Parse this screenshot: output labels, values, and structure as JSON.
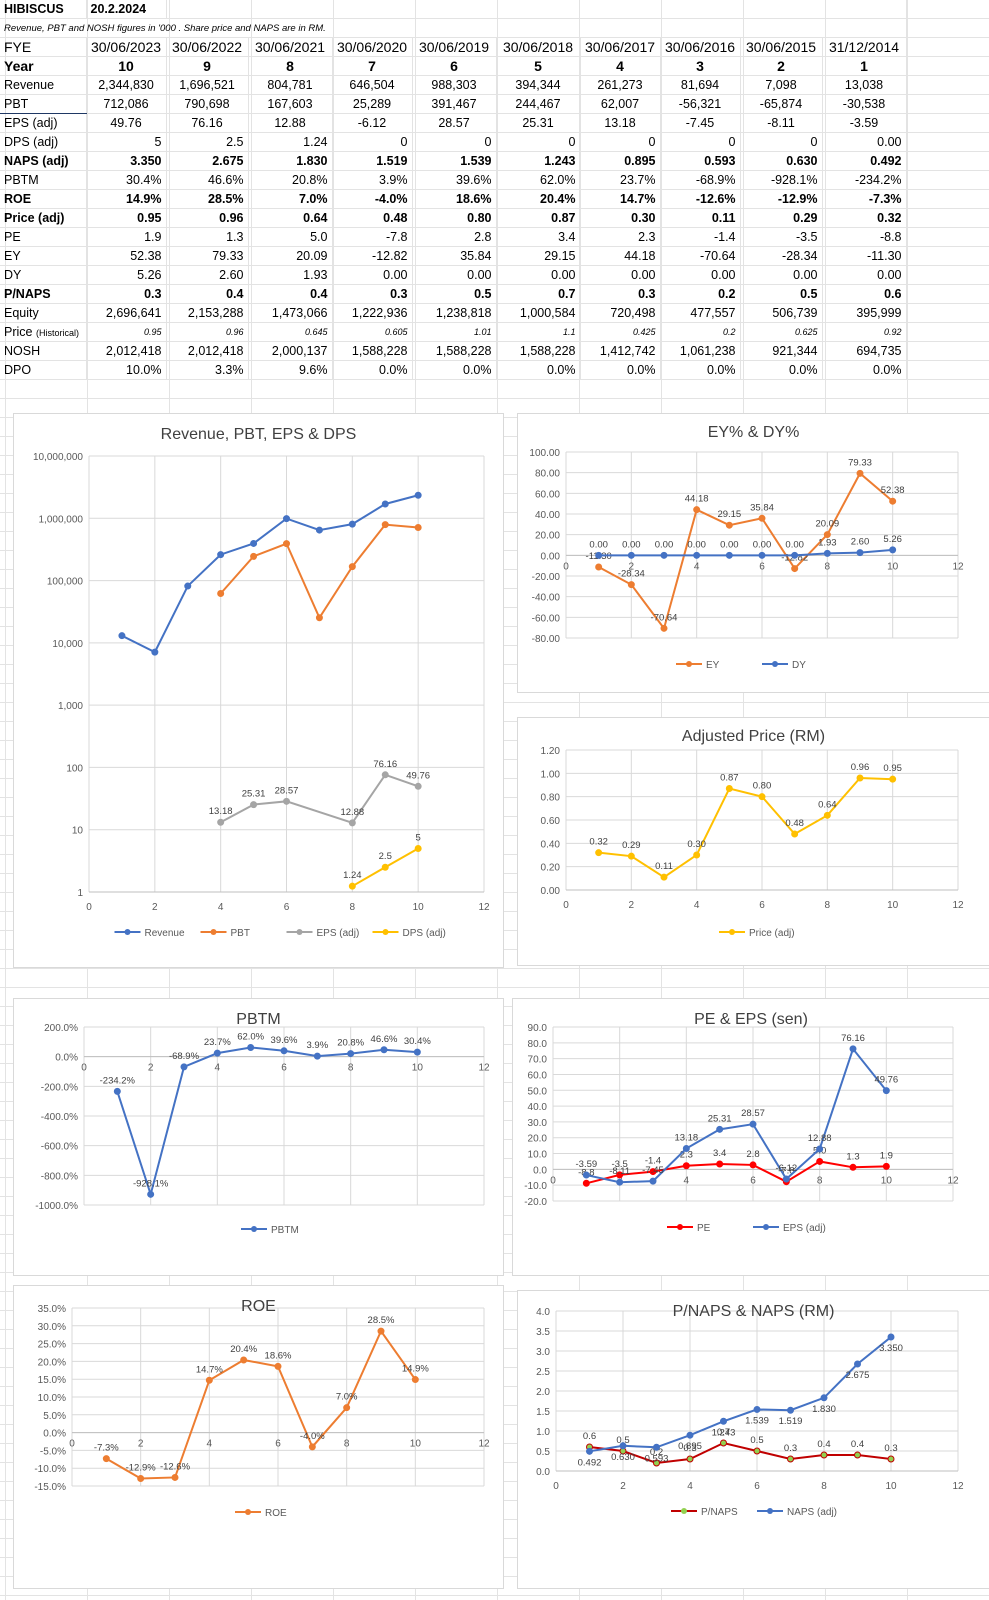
{
  "sheet": {
    "company": "HIBISCUS",
    "date": "20.2.2024",
    "note": "Revenue, PBT and  NOSH  figures in '000 .  Share price  and NAPS are in  RM.",
    "fye_label": "FYE",
    "fye": [
      "30/06/2023",
      "30/06/2022",
      "30/06/2021",
      "30/06/2020",
      "30/06/2019",
      "30/06/2018",
      "30/06/2017",
      "30/06/2016",
      "30/06/2015",
      "31/12/2014"
    ],
    "rows": [
      {
        "label": "Year",
        "values": [
          "10",
          "9",
          "8",
          "7",
          "6",
          "5",
          "4",
          "3",
          "2",
          "1"
        ]
      },
      {
        "label": "Revenue",
        "values": [
          "2,344,830",
          "1,696,521",
          "804,781",
          "646,504",
          "988,303",
          "394,344",
          "261,273",
          "81,694",
          "7,098",
          "13,038"
        ]
      },
      {
        "label": "PBT",
        "values": [
          "712,086",
          "790,698",
          "167,603",
          "25,289",
          "391,467",
          "244,467",
          "62,007",
          "-56,321",
          "-65,874",
          "-30,538"
        ]
      },
      {
        "label": "EPS (adj)",
        "values": [
          "49.76",
          "76.16",
          "12.88",
          "-6.12",
          "28.57",
          "25.31",
          "13.18",
          "-7.45",
          "-8.11",
          "-3.59"
        ]
      },
      {
        "label": "DPS (adj)",
        "values": [
          "5",
          "2.5",
          "1.24",
          "0",
          "0",
          "0",
          "0",
          "0",
          "0",
          "0.00"
        ]
      },
      {
        "label": "NAPS (adj)",
        "values": [
          "3.350",
          "2.675",
          "1.830",
          "1.519",
          "1.539",
          "1.243",
          "0.895",
          "0.593",
          "0.630",
          "0.492"
        ]
      },
      {
        "label": "PBTM",
        "values": [
          "30.4%",
          "46.6%",
          "20.8%",
          "3.9%",
          "39.6%",
          "62.0%",
          "23.7%",
          "-68.9%",
          "-928.1%",
          "-234.2%"
        ]
      },
      {
        "label": "ROE",
        "values": [
          "14.9%",
          "28.5%",
          "7.0%",
          "-4.0%",
          "18.6%",
          "20.4%",
          "14.7%",
          "-12.6%",
          "-12.9%",
          "-7.3%"
        ]
      },
      {
        "label": "Price (adj)",
        "values": [
          "0.95",
          "0.96",
          "0.64",
          "0.48",
          "0.80",
          "0.87",
          "0.30",
          "0.11",
          "0.29",
          "0.32"
        ]
      },
      {
        "label": "PE",
        "values": [
          "1.9",
          "1.3",
          "5.0",
          "-7.8",
          "2.8",
          "3.4",
          "2.3",
          "-1.4",
          "-3.5",
          "-8.8"
        ]
      },
      {
        "label": "EY",
        "values": [
          "52.38",
          "79.33",
          "20.09",
          "-12.82",
          "35.84",
          "29.15",
          "44.18",
          "-70.64",
          "-28.34",
          "-11.30"
        ]
      },
      {
        "label": "DY",
        "values": [
          "5.26",
          "2.60",
          "1.93",
          "0.00",
          "0.00",
          "0.00",
          "0.00",
          "0.00",
          "0.00",
          "0.00"
        ]
      },
      {
        "label": "P/NAPS",
        "values": [
          "0.3",
          "0.4",
          "0.4",
          "0.3",
          "0.5",
          "0.7",
          "0.3",
          "0.2",
          "0.5",
          "0.6"
        ]
      },
      {
        "label": "Equity",
        "values": [
          "2,696,641",
          "2,153,288",
          "1,473,066",
          "1,222,936",
          "1,238,818",
          "1,000,584",
          "720,498",
          "477,557",
          "506,739",
          "395,999"
        ]
      },
      {
        "label": "Price",
        "label_sub": "(Historical)",
        "values": [
          "0.95",
          "0.96",
          "0.645",
          "0.605",
          "1.01",
          "1.1",
          "0.425",
          "0.2",
          "0.625",
          "0.92"
        ]
      },
      {
        "label": "NOSH",
        "values": [
          "2,012,418",
          "2,012,418",
          "2,000,137",
          "1,588,228",
          "1,588,228",
          "1,588,228",
          "1,412,742",
          "1,061,238",
          "921,344",
          "694,735"
        ]
      },
      {
        "label": "DPO",
        "values": [
          "10.0%",
          "3.3%",
          "9.6%",
          "0.0%",
          "0.0%",
          "0.0%",
          "0.0%",
          "0.0%",
          "0.0%",
          "0.0%"
        ]
      }
    ]
  },
  "chart_data": [
    {
      "type": "line",
      "title": "Revenue, PBT, EPS & DPS",
      "log_scale": true,
      "xlim": [
        0,
        12
      ],
      "ylim": [
        1,
        10000000
      ],
      "x_ticks": [
        "0",
        "2",
        "4",
        "6",
        "8",
        "10",
        "12"
      ],
      "y_ticks": [
        "1",
        "10",
        "100",
        "1,000",
        "10,000",
        "100,000",
        "1,000,000",
        "10,000,000"
      ],
      "series": [
        {
          "name": "Revenue",
          "color": "#4472c4",
          "x": [
            1,
            2,
            3,
            4,
            5,
            6,
            7,
            8,
            9,
            10
          ],
          "values": [
            13038,
            7098,
            81694,
            261273,
            394344,
            988303,
            646504,
            804781,
            1696521,
            2344830
          ]
        },
        {
          "name": "PBT",
          "color": "#ed7d31",
          "x": [
            4,
            5,
            6,
            7,
            8,
            9,
            10
          ],
          "values": [
            62007,
            244467,
            391467,
            25289,
            167603,
            790698,
            712086
          ]
        },
        {
          "name": "EPS (adj)",
          "color": "#a5a5a5",
          "x": [
            4,
            5,
            6,
            8,
            9,
            10
          ],
          "values": [
            13.18,
            25.31,
            28.57,
            12.88,
            76.16,
            49.76
          ],
          "labels": [
            "13.18",
            "25.31",
            "28.57",
            "12.88",
            "76.16",
            "49.76"
          ]
        },
        {
          "name": "DPS (adj)",
          "color": "#ffc000",
          "x": [
            8,
            9,
            10
          ],
          "values": [
            1.24,
            2.5,
            5
          ],
          "labels": [
            "1.24",
            "2.5",
            "5"
          ]
        }
      ]
    },
    {
      "type": "line",
      "title": "EY% & DY%",
      "xlim": [
        0,
        12
      ],
      "ylim": [
        -80,
        100
      ],
      "x_ticks": [
        "0",
        "2",
        "4",
        "6",
        "8",
        "10",
        "12"
      ],
      "y_ticks": [
        "-80.00",
        "-60.00",
        "-40.00",
        "-20.00",
        "0.00",
        "20.00",
        "40.00",
        "60.00",
        "80.00",
        "100.00"
      ],
      "series": [
        {
          "name": "EY",
          "color": "#ed7d31",
          "x": [
            1,
            2,
            3,
            4,
            5,
            6,
            7,
            8,
            9,
            10
          ],
          "values": [
            -11.3,
            -28.34,
            -70.64,
            44.18,
            29.15,
            35.84,
            -12.82,
            20.09,
            79.33,
            52.38
          ],
          "labels": [
            "-11.30",
            "-28.34",
            "-70.64",
            "44.18",
            "29.15",
            "35.84",
            "-12.82",
            "20.09",
            "79.33",
            "52.38"
          ]
        },
        {
          "name": "DY",
          "color": "#4472c4",
          "x": [
            1,
            2,
            3,
            4,
            5,
            6,
            7,
            8,
            9,
            10
          ],
          "values": [
            0,
            0,
            0,
            0,
            0,
            0,
            0,
            1.93,
            2.6,
            5.26
          ],
          "labels": [
            "0.00",
            "0.00",
            "0.00",
            "0.00",
            "0.00",
            "0.00",
            "0.00",
            "1.93",
            "2.60",
            "5.26"
          ]
        }
      ]
    },
    {
      "type": "line",
      "title": "Adjusted Price (RM)",
      "xlim": [
        0,
        12
      ],
      "ylim": [
        0,
        1.2
      ],
      "x_ticks": [
        "0",
        "2",
        "4",
        "6",
        "8",
        "10",
        "12"
      ],
      "y_ticks": [
        "0.00",
        "0.20",
        "0.40",
        "0.60",
        "0.80",
        "1.00",
        "1.20"
      ],
      "series": [
        {
          "name": "Price (adj)",
          "color": "#ffc000",
          "x": [
            1,
            2,
            3,
            4,
            5,
            6,
            7,
            8,
            9,
            10
          ],
          "values": [
            0.32,
            0.29,
            0.11,
            0.3,
            0.87,
            0.8,
            0.48,
            0.64,
            0.96,
            0.95
          ],
          "labels": [
            "0.32",
            "0.29",
            "0.11",
            "0.30",
            "0.87",
            "0.80",
            "0.48",
            "0.64",
            "0.96",
            "0.95"
          ]
        }
      ]
    },
    {
      "type": "line",
      "title": "PBTM",
      "xlim": [
        0,
        12
      ],
      "ylim": [
        -1000,
        200
      ],
      "x_ticks": [
        "0",
        "2",
        "4",
        "6",
        "8",
        "10",
        "12"
      ],
      "y_ticks": [
        "-1000.0%",
        "-800.0%",
        "-600.0%",
        "-400.0%",
        "-200.0%",
        "0.0%",
        "200.0%"
      ],
      "series": [
        {
          "name": "PBTM",
          "color": "#4472c4",
          "x": [
            1,
            2,
            3,
            4,
            5,
            6,
            7,
            8,
            9,
            10
          ],
          "values": [
            -234.2,
            -928.1,
            -68.9,
            23.7,
            62,
            39.6,
            3.9,
            20.8,
            46.6,
            30.4
          ],
          "labels": [
            "-234.2%",
            "-928.1%",
            "-68.9%",
            "23.7%",
            "62.0%",
            "39.6%",
            "3.9%",
            "20.8%",
            "46.6%",
            "30.4%"
          ]
        }
      ]
    },
    {
      "type": "line",
      "title": "PE & EPS (sen)",
      "xlim": [
        0,
        12
      ],
      "ylim": [
        -20,
        90
      ],
      "x_ticks": [
        "0",
        "2",
        "4",
        "6",
        "8",
        "10",
        "12"
      ],
      "y_ticks": [
        "-20.0",
        "-10.0",
        "0.0",
        "10.0",
        "20.0",
        "30.0",
        "40.0",
        "50.0",
        "60.0",
        "70.0",
        "80.0",
        "90.0"
      ],
      "series": [
        {
          "name": "PE",
          "color": "#ff0000",
          "x": [
            1,
            2,
            3,
            4,
            5,
            6,
            7,
            8,
            9,
            10
          ],
          "values": [
            -8.8,
            -3.5,
            -1.4,
            2.3,
            3.4,
            2.8,
            -7.8,
            5,
            1.3,
            1.9
          ],
          "labels": [
            "-8.8",
            "-3.5",
            "-1.4",
            "2.3",
            "3.4",
            "2.8",
            "-7.8",
            "5.0",
            "1.3",
            "1.9"
          ]
        },
        {
          "name": "EPS (adj)",
          "color": "#4472c4",
          "x": [
            1,
            2,
            3,
            4,
            5,
            6,
            7,
            8,
            9,
            10
          ],
          "values": [
            -3.59,
            -8.11,
            -7.45,
            13.18,
            25.31,
            28.57,
            -6.12,
            12.88,
            76.16,
            49.76
          ],
          "labels": [
            "-3.59",
            "-8.11",
            "-7.45",
            "13.18",
            "25.31",
            "28.57",
            "-6.12",
            "12.88",
            "76.16",
            "49.76"
          ]
        }
      ]
    },
    {
      "type": "line",
      "title": "ROE",
      "xlim": [
        0,
        12
      ],
      "ylim": [
        -15,
        35
      ],
      "x_ticks": [
        "0",
        "2",
        "4",
        "6",
        "8",
        "10",
        "12"
      ],
      "y_ticks": [
        "-15.0%",
        "-10.0%",
        "-5.0%",
        "0.0%",
        "5.0%",
        "10.0%",
        "15.0%",
        "20.0%",
        "25.0%",
        "30.0%",
        "35.0%"
      ],
      "series": [
        {
          "name": "ROE",
          "color": "#ed7d31",
          "x": [
            1,
            2,
            3,
            4,
            5,
            6,
            7,
            8,
            9,
            10
          ],
          "values": [
            -7.3,
            -12.9,
            -12.6,
            14.7,
            20.4,
            18.6,
            -4,
            7,
            28.5,
            14.9
          ],
          "labels": [
            "-7.3%",
            "-12.9%",
            "-12.6%",
            "14.7%",
            "20.4%",
            "18.6%",
            "-4.0%",
            "7.0%",
            "28.5%",
            "14.9%"
          ]
        }
      ]
    },
    {
      "type": "line",
      "title": "P/NAPS & NAPS (RM)",
      "xlim": [
        0,
        12
      ],
      "ylim": [
        0,
        4
      ],
      "x_ticks": [
        "0",
        "2",
        "4",
        "6",
        "8",
        "10",
        "12"
      ],
      "y_ticks": [
        "0.0",
        "0.5",
        "1.0",
        "1.5",
        "2.0",
        "2.5",
        "3.0",
        "3.5",
        "4.0"
      ],
      "series": [
        {
          "name": "P/NAPS",
          "color": "#c00000",
          "marker": "#92d050",
          "x": [
            1,
            2,
            3,
            4,
            5,
            6,
            7,
            8,
            9,
            10
          ],
          "values": [
            0.6,
            0.5,
            0.2,
            0.3,
            0.7,
            0.5,
            0.3,
            0.4,
            0.4,
            0.3
          ],
          "labels": [
            "0.6",
            "0.5",
            "0.2",
            "0.3",
            "0.7",
            "0.5",
            "0.3",
            "0.4",
            "0.4",
            "0.3"
          ]
        },
        {
          "name": "NAPS (adj)",
          "color": "#4472c4",
          "x": [
            1,
            2,
            3,
            4,
            5,
            6,
            7,
            8,
            9,
            10
          ],
          "values": [
            0.492,
            0.63,
            0.593,
            0.895,
            1.243,
            1.539,
            1.519,
            1.83,
            2.675,
            3.35
          ],
          "labels": [
            "0.492",
            "0.630",
            "0.593",
            "0.895",
            "1.243",
            "1.539",
            "1.519",
            "1.830",
            "2.675",
            "3.350"
          ]
        }
      ]
    }
  ]
}
